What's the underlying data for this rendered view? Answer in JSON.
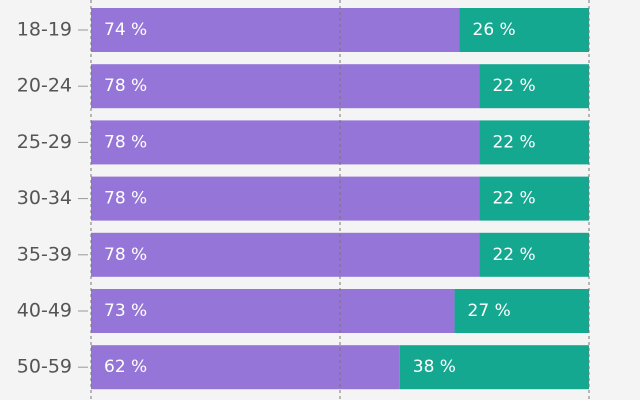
{
  "chart_data": {
    "type": "stacked-barh",
    "categories": [
      "18-19",
      "20-24",
      "25-29",
      "30-34",
      "35-39",
      "40-49",
      "50-59"
    ],
    "series": [
      {
        "color": "#9575d8",
        "values": [
          74,
          78,
          78,
          78,
          78,
          73,
          62
        ],
        "value_labels": [
          "74 %",
          "78 %",
          "78 %",
          "78 %",
          "78 %",
          "73 %",
          "62 %"
        ]
      },
      {
        "color": "#14a890",
        "values": [
          26,
          22,
          22,
          22,
          22,
          27,
          38
        ],
        "value_labels": [
          "26 %",
          "22 %",
          "22 %",
          "22 %",
          "22 %",
          "27 %",
          "38 %"
        ]
      }
    ],
    "xlim": [
      0,
      100
    ],
    "xticks": [
      0,
      50,
      100
    ],
    "grid": true
  }
}
